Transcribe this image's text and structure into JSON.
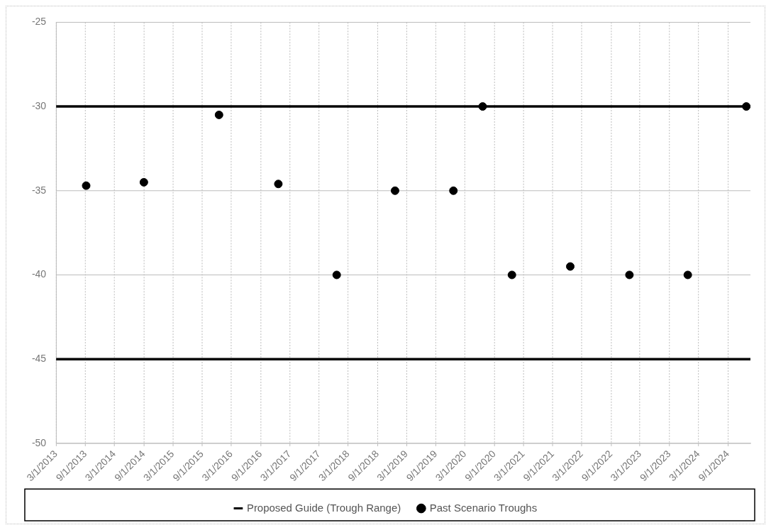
{
  "chart_data": {
    "type": "scatter",
    "x": [
      "2013-09-05",
      "2014-09-01",
      "2015-12-15",
      "2016-12-20",
      "2017-12-20",
      "2018-12-20",
      "2019-12-20",
      "2020-06-20",
      "2020-12-20",
      "2021-12-20",
      "2022-12-25",
      "2023-12-25",
      "2024-12-25"
    ],
    "series": [
      {
        "name": "Proposed Guide (Trough Range)",
        "type": "line",
        "marker": "none",
        "color": "#000000",
        "x": [
          "2013-03-01",
          "2025-01-20"
        ],
        "values": [
          -30,
          -30
        ]
      },
      {
        "type": "line",
        "marker": "none",
        "color": "#000000",
        "x": [
          "2013-03-01",
          "2025-01-20"
        ],
        "values": [
          -45,
          -45
        ]
      },
      {
        "name": "Past Scenario Troughs",
        "marker": "circle",
        "color": "#000000",
        "values": [
          -34.7,
          -34.5,
          -30.5,
          -34.6,
          -40,
          -35,
          -35,
          -30,
          -40,
          -39.5,
          -40,
          -40,
          -30
        ]
      }
    ],
    "xlim": [
      "2013-03-01",
      "2025-01-20"
    ],
    "xticks": [
      {
        "value": "2013-03-01",
        "label": "3/1/2013"
      },
      {
        "value": "2013-09-01",
        "label": "9/1/2013"
      },
      {
        "value": "2014-03-01",
        "label": "3/1/2014"
      },
      {
        "value": "2014-09-01",
        "label": "9/1/2014"
      },
      {
        "value": "2015-03-01",
        "label": "3/1/2015"
      },
      {
        "value": "2015-09-01",
        "label": "9/1/2015"
      },
      {
        "value": "2016-03-01",
        "label": "3/1/2016"
      },
      {
        "value": "2016-09-01",
        "label": "9/1/2016"
      },
      {
        "value": "2017-03-01",
        "label": "3/1/2017"
      },
      {
        "value": "2017-09-01",
        "label": "9/1/2017"
      },
      {
        "value": "2018-03-01",
        "label": "3/1/2018"
      },
      {
        "value": "2018-09-01",
        "label": "9/1/2018"
      },
      {
        "value": "2019-03-01",
        "label": "3/1/2019"
      },
      {
        "value": "2019-09-01",
        "label": "9/1/2019"
      },
      {
        "value": "2020-03-01",
        "label": "3/1/2020"
      },
      {
        "value": "2020-09-01",
        "label": "9/1/2020"
      },
      {
        "value": "2021-03-01",
        "label": "3/1/2021"
      },
      {
        "value": "2021-09-01",
        "label": "9/1/2021"
      },
      {
        "value": "2022-03-01",
        "label": "3/1/2022"
      },
      {
        "value": "2022-09-01",
        "label": "9/1/2022"
      },
      {
        "value": "2023-03-01",
        "label": "3/1/2023"
      },
      {
        "value": "2023-09-01",
        "label": "9/1/2023"
      },
      {
        "value": "2024-03-01",
        "label": "3/1/2024"
      },
      {
        "value": "2024-09-01",
        "label": "9/1/2024"
      }
    ],
    "ylim": [
      -50,
      -25
    ],
    "yticks": [
      -50,
      -45,
      -40,
      -35,
      -30,
      -25
    ],
    "grid": true,
    "legend": "bottom"
  }
}
